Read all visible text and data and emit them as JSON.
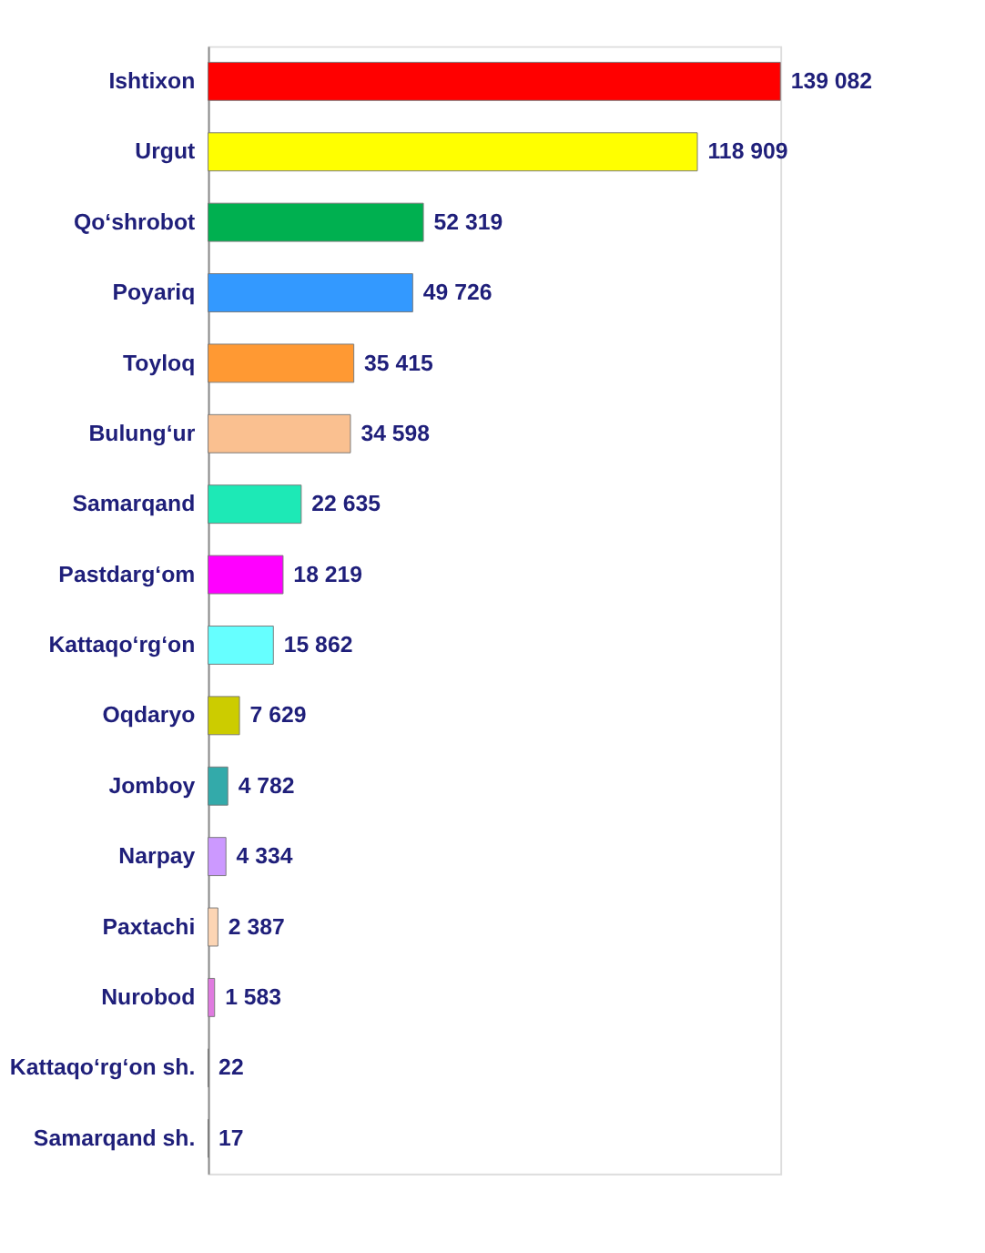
{
  "chart_data": {
    "type": "bar",
    "orientation": "horizontal",
    "categories": [
      "Ishtixon",
      "Urgut",
      "Qo‘shrobot",
      "Poyariq",
      "Toyloq",
      "Bulung‘ur",
      "Samarqand",
      "Pastdarg‘om",
      "Kattaqo‘rg‘on",
      "Oqdaryo",
      "Jomboy",
      "Narpay",
      "Paxtachi",
      "Nurobod",
      "Kattaqo‘rg‘on sh.",
      "Samarqand sh."
    ],
    "values": [
      139082,
      118909,
      52319,
      49726,
      35415,
      34598,
      22635,
      18219,
      15862,
      7629,
      4782,
      4334,
      2387,
      1583,
      22,
      17
    ],
    "value_labels": [
      "139 082",
      "118 909",
      "52 319",
      "49 726",
      "35 415",
      "34 598",
      "22 635",
      "18 219",
      "15 862",
      "7 629",
      "4 782",
      "4 334",
      "2 387",
      "1 583",
      "22",
      "17"
    ],
    "colors": [
      "#ff0000",
      "#ffff00",
      "#00b050",
      "#3399ff",
      "#ff9933",
      "#fac090",
      "#1de9b6",
      "#ff00ff",
      "#66ffff",
      "#cccc00",
      "#33aaaa",
      "#cc99ff",
      "#fcd5b4",
      "#e07be0",
      "#c4bd97",
      "#31859c"
    ],
    "grid": false
  }
}
